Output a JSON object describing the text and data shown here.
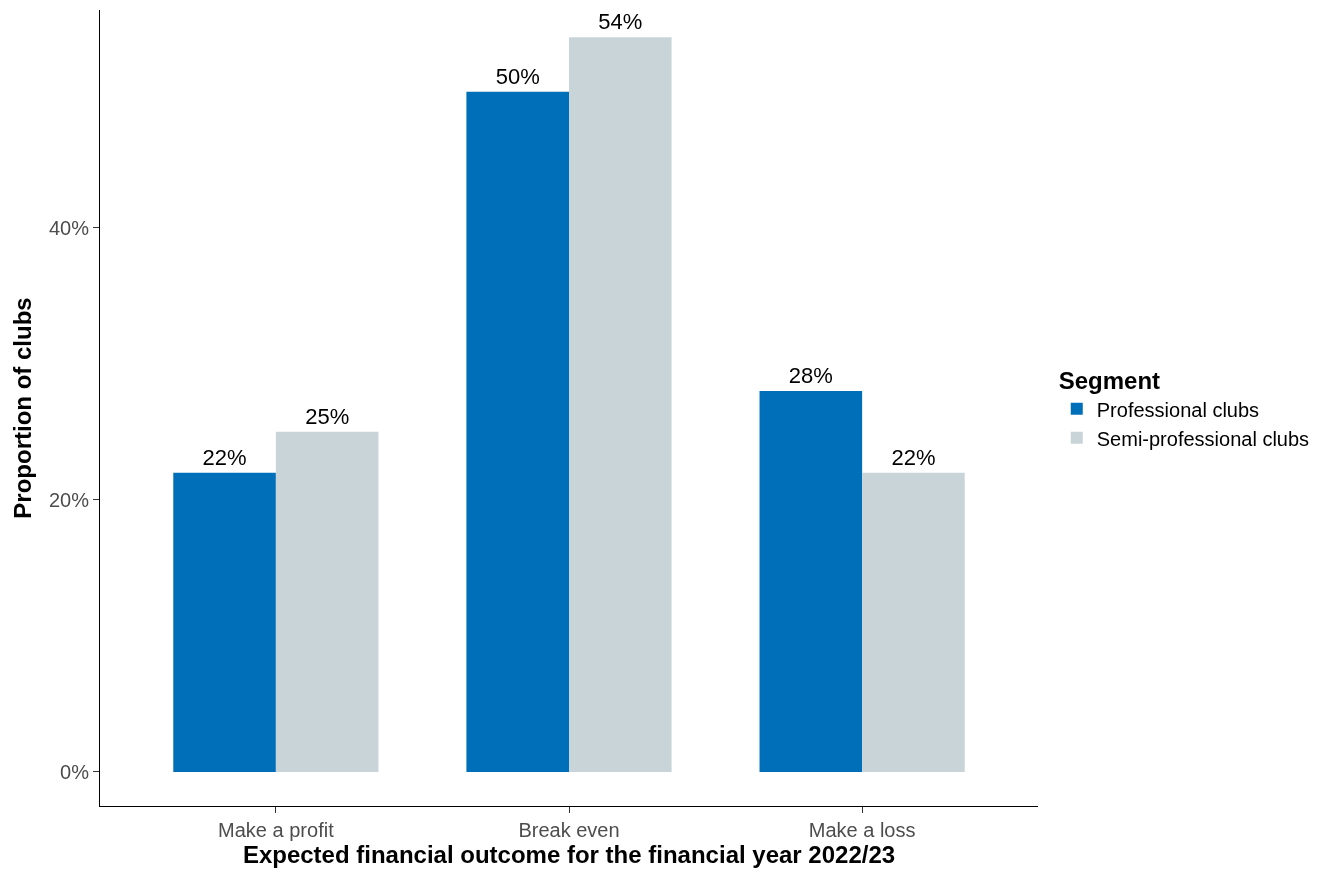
{
  "chart_data": {
    "type": "bar",
    "xlabel": "Expected financial outcome for the financial year 2022/23",
    "ylabel": "Proportion of clubs",
    "legend_title": "Segment",
    "categories": [
      "Make a profit",
      "Break even",
      "Make a loss"
    ],
    "series": [
      {
        "name": "Professional clubs",
        "color": "#006fba",
        "values": [
          22,
          50,
          28
        ],
        "value_labels": [
          "22%",
          "50%",
          "28%"
        ]
      },
      {
        "name": "Semi-professional clubs",
        "color": "#c9d4d8",
        "values": [
          25,
          54,
          22
        ],
        "value_labels": [
          "25%",
          "54%",
          "22%"
        ]
      }
    ],
    "ylim": [
      -2.5,
      56
    ],
    "yticks": [
      {
        "value": 0,
        "label": "0%"
      },
      {
        "value": 20,
        "label": "20%"
      },
      {
        "value": 40,
        "label": "40%"
      }
    ],
    "grid": false,
    "legend": "right"
  }
}
